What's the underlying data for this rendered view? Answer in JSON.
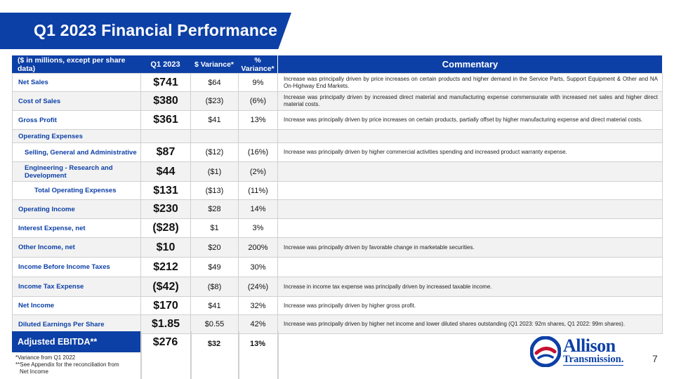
{
  "title": "Q1 2023 Financial Performance",
  "table": {
    "headers": {
      "label": "($ in millions, except per share data)",
      "q1": "Q1 2023",
      "variance": "$ Variance*",
      "pct": "% Variance*",
      "commentary": "Commentary"
    },
    "rows": [
      {
        "label": "Net Sales",
        "q1": "$741",
        "variance": "$64",
        "pct": "9%",
        "commentary": "Increase was principally driven by price increases on certain products and higher demand in the Service Parts, Support Equipment & Other and NA On-Highway End Markets."
      },
      {
        "label": "Cost of Sales",
        "q1": "$380",
        "variance": "($23)",
        "pct": "(6%)",
        "commentary": "Increase was principally driven by increased direct material and manufacturing expense commensurate with increased net sales and higher direct material costs."
      },
      {
        "label": "Gross Profit",
        "q1": "$361",
        "variance": "$41",
        "pct": "13%",
        "commentary": "Increase was principally driven by price increases on certain products, partially offset by higher manufacturing expense and direct material costs."
      },
      {
        "label": "Operating Expenses",
        "q1": "",
        "variance": "",
        "pct": "",
        "commentary": ""
      },
      {
        "label": "Selling, General and Administrative",
        "q1": "$87",
        "variance": "($12)",
        "pct": "(16%)",
        "commentary": "Increase was principally driven by higher commercial activities spending and increased product warranty expense."
      },
      {
        "label": "Engineering - Research and Development",
        "q1": "$44",
        "variance": "($1)",
        "pct": "(2%)",
        "commentary": ""
      },
      {
        "label": "Total Operating Expenses",
        "q1": "$131",
        "variance": "($13)",
        "pct": "(11%)",
        "commentary": ""
      },
      {
        "label": "Operating Income",
        "q1": "$230",
        "variance": "$28",
        "pct": "14%",
        "commentary": ""
      },
      {
        "label": "Interest Expense, net",
        "q1": "($28)",
        "variance": "$1",
        "pct": "3%",
        "commentary": ""
      },
      {
        "label": "Other Income, net",
        "q1": "$10",
        "variance": "$20",
        "pct": "200%",
        "commentary": "Increase was principally driven by favorable change in marketable securities."
      },
      {
        "label": "Income Before Income Taxes",
        "q1": "$212",
        "variance": "$49",
        "pct": "30%",
        "commentary": ""
      },
      {
        "label": "Income Tax Expense",
        "q1": "($42)",
        "variance": "($8)",
        "pct": "(24%)",
        "commentary": "Increase in income tax expense was principally driven by increased taxable income."
      },
      {
        "label": "Net Income",
        "q1": "$170",
        "variance": "$41",
        "pct": "32%",
        "commentary": "Increase was principally driven by higher gross profit."
      },
      {
        "label": "Diluted Earnings Per Share",
        "q1": "$1.85",
        "variance": "$0.55",
        "pct": "42%",
        "commentary": "Increase was principally driven by higher net income and lower diluted shares outstanding (Q1 2023: 92m shares, Q1 2022: 99m shares)."
      }
    ],
    "ebitda": {
      "label": "Adjusted EBITDA**",
      "q1": "$276",
      "variance": "$32",
      "pct": "13%"
    }
  },
  "footnotes": {
    "line1": "*Variance from Q1 2022",
    "line2": "**See Appendix for the reconciliation from",
    "line3": "Net Income"
  },
  "logo": {
    "name": "Allison",
    "sub": "Transmission."
  },
  "page_number": "7",
  "colors": {
    "brand_blue": "#0d40a6",
    "brand_red": "#c8102e"
  }
}
